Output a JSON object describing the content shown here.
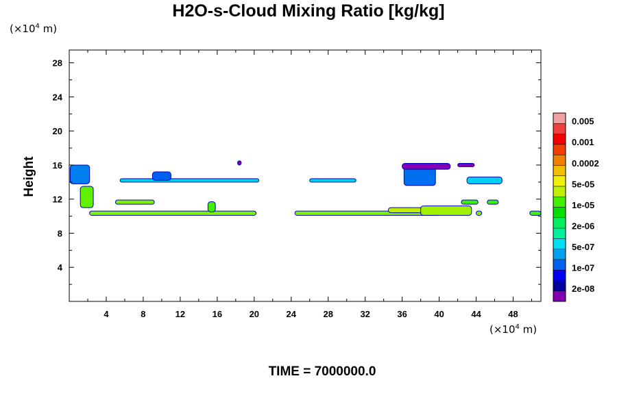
{
  "chart_data": {
    "type": "heatmap",
    "title": "H2O-s-Cloud Mixing Ratio [kg/kg]",
    "ylabel": "Height",
    "y_unit": {
      "prefix": "(×10",
      "exp": "4",
      "suffix": " m)"
    },
    "x_unit": {
      "prefix": "(×10",
      "exp": "4",
      "suffix": " m)"
    },
    "footer": "TIME = 7000000.0",
    "xlim": [
      0,
      51
    ],
    "ylim": [
      0,
      29.5
    ],
    "x_ticks": [
      4,
      8,
      12,
      16,
      20,
      24,
      28,
      32,
      36,
      40,
      44,
      48
    ],
    "y_ticks": [
      4,
      8,
      12,
      16,
      20,
      24,
      28
    ],
    "colorbar": {
      "colors": [
        "#8000b0",
        "#0000a0",
        "#0000f0",
        "#0060f0",
        "#00a0f0",
        "#00e0f0",
        "#00f0a0",
        "#00f060",
        "#00e000",
        "#40f000",
        "#c0f000",
        "#f0f000",
        "#f0c000",
        "#f08000",
        "#f04000",
        "#f00000",
        "#f04040",
        "#f0a0a0"
      ],
      "labels": [
        "2e-08",
        "1e-07",
        "5e-07",
        "2e-06",
        "1e-05",
        "5e-05",
        "0.0002",
        "0.001",
        "0.005"
      ]
    },
    "regions": [
      {
        "x": [
          2.2,
          20.2
        ],
        "y": [
          10.1,
          10.6
        ],
        "color": "#80f000"
      },
      {
        "x": [
          24.4,
          40.0
        ],
        "y": [
          10.1,
          10.6
        ],
        "color": "#80f000"
      },
      {
        "x": [
          34.5,
          38.5
        ],
        "y": [
          10.4,
          11.0
        ],
        "color": "#c0f000"
      },
      {
        "x": [
          38.0,
          43.5
        ],
        "y": [
          10.1,
          11.2
        ],
        "color": "#a0f000"
      },
      {
        "x": [
          44.0,
          44.6
        ],
        "y": [
          10.1,
          10.6
        ],
        "color": "#80f000"
      },
      {
        "x": [
          49.8,
          51.0
        ],
        "y": [
          10.1,
          10.6
        ],
        "color": "#40f000"
      },
      {
        "x": [
          5.0,
          9.2
        ],
        "y": [
          11.4,
          11.9
        ],
        "color": "#80f000"
      },
      {
        "x": [
          42.4,
          44.2
        ],
        "y": [
          11.4,
          11.9
        ],
        "color": "#40f000"
      },
      {
        "x": [
          45.2,
          46.4
        ],
        "y": [
          11.4,
          11.9
        ],
        "color": "#40f000"
      },
      {
        "x": [
          15.0,
          15.8
        ],
        "y": [
          10.5,
          11.7
        ],
        "color": "#40f000"
      },
      {
        "x": [
          1.2,
          2.6
        ],
        "y": [
          11.0,
          13.5
        ],
        "color": "#60f000"
      },
      {
        "x": [
          5.5,
          20.5
        ],
        "y": [
          14.0,
          14.4
        ],
        "color": "#00d0f0"
      },
      {
        "x": [
          26.0,
          31.0
        ],
        "y": [
          14.0,
          14.4
        ],
        "color": "#00d0f0"
      },
      {
        "x": [
          43.0,
          46.8
        ],
        "y": [
          13.8,
          14.6
        ],
        "color": "#00d0f0"
      },
      {
        "x": [
          0.1,
          2.2
        ],
        "y": [
          13.8,
          16.0
        ],
        "color": "#0080f0"
      },
      {
        "x": [
          9.0,
          11.0
        ],
        "y": [
          14.2,
          15.2
        ],
        "color": "#0060f0"
      },
      {
        "x": [
          36.2,
          39.6
        ],
        "y": [
          13.6,
          15.8
        ],
        "color": "#0070f0"
      },
      {
        "x": [
          36.0,
          41.2
        ],
        "y": [
          15.5,
          16.2
        ],
        "color": "#8000b0"
      },
      {
        "x": [
          42.0,
          43.8
        ],
        "y": [
          15.8,
          16.2
        ],
        "color": "#8000b0"
      },
      {
        "x": [
          18.2,
          18.6
        ],
        "y": [
          16.0,
          16.5
        ],
        "color": "#8000b0"
      }
    ]
  }
}
